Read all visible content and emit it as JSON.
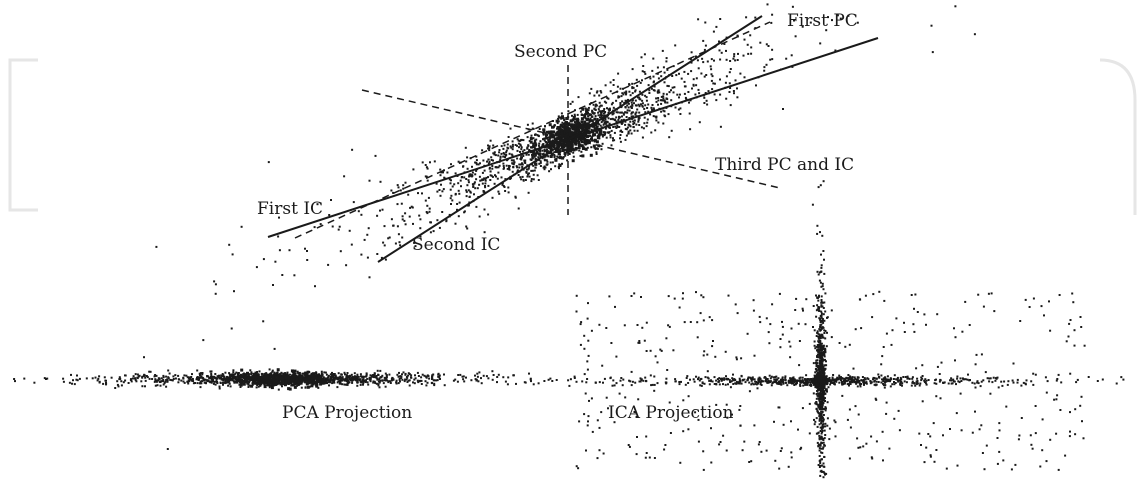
{
  "labels": {
    "first_pc": "First PC",
    "second_pc": "Second PC",
    "third_pc_ic": "Third PC and IC",
    "first_ic": "First IC",
    "second_ic": "Second IC",
    "pca_projection": "PCA Projection",
    "ica_projection": "ICA Projection"
  },
  "colors": {
    "ink": "#1a1a1a",
    "background": "#ffffff"
  }
}
